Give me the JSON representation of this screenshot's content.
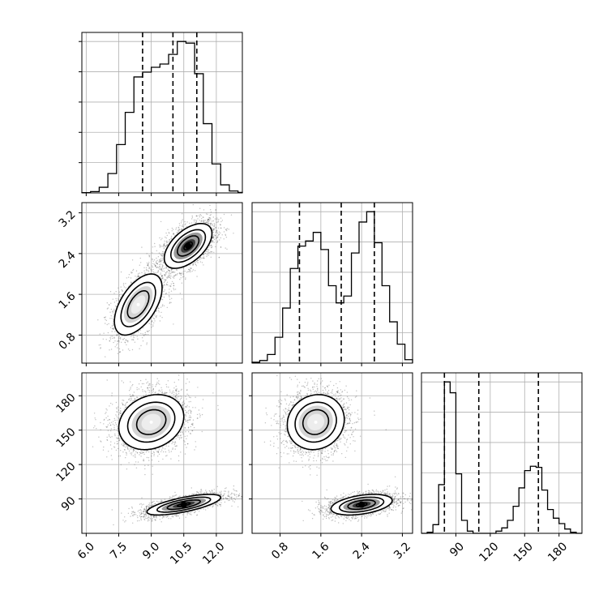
{
  "figure": {
    "type": "corner-plot",
    "title": ""
  },
  "colors": {
    "ink": "#000000",
    "grid": "#b0b0b0",
    "scatter": "#4a4a4a"
  },
  "chart_data": {
    "type": "corner",
    "parameters": [
      {
        "name": "",
        "range": [
          5.8,
          13.2
        ],
        "ticks": [
          6.0,
          7.5,
          9.0,
          10.5,
          12.0
        ],
        "tick_labels": [
          "6.0",
          "7.5",
          "9.0",
          "10.5",
          "12.0"
        ]
      },
      {
        "name": "",
        "range": [
          0.25,
          3.4
        ],
        "ticks": [
          0.8,
          1.6,
          2.4,
          3.2
        ],
        "tick_labels": [
          "0.8",
          "1.6",
          "2.4",
          "3.2"
        ]
      },
      {
        "name": "",
        "range": [
          60,
          200
        ],
        "ticks": [
          90,
          120,
          150,
          180
        ],
        "tick_labels": [
          "90",
          "120",
          "150",
          "180"
        ]
      }
    ],
    "grid": true,
    "histograms": [
      {
        "parameter": 0,
        "edges": [
          5.8,
          6.2,
          6.6,
          7.0,
          7.4,
          7.8,
          8.2,
          8.6,
          9.0,
          9.4,
          9.8,
          10.2,
          10.6,
          11.0,
          11.4,
          11.8,
          12.2,
          12.6,
          13.0,
          13.2
        ],
        "counts": [
          0.2,
          0.8,
          3.5,
          12,
          30,
          50,
          72,
          75,
          78,
          80,
          86,
          94,
          93,
          74,
          43,
          18,
          5,
          1.2,
          0.3
        ],
        "quantiles": [
          8.6,
          10.0,
          11.1
        ]
      },
      {
        "parameter": 1,
        "edges": [
          0.25,
          0.4,
          0.55,
          0.7,
          0.85,
          1.0,
          1.15,
          1.3,
          1.45,
          1.6,
          1.75,
          1.9,
          2.05,
          2.2,
          2.35,
          2.5,
          2.65,
          2.8,
          2.95,
          3.1,
          3.25,
          3.4
        ],
        "counts": [
          0.5,
          1.5,
          5,
          15,
          32,
          55,
          68,
          71,
          76,
          66,
          45,
          35,
          39,
          64,
          82,
          88,
          70,
          45,
          24,
          11,
          2
        ],
        "quantiles": [
          1.18,
          2.0,
          2.65
        ]
      },
      {
        "parameter": 2,
        "edges": [
          60,
          65,
          70,
          75,
          80,
          85,
          90,
          95,
          100,
          105,
          110,
          115,
          120,
          125,
          130,
          135,
          140,
          145,
          150,
          155,
          160,
          165,
          170,
          175,
          180,
          185,
          190,
          195,
          200
        ],
        "counts": [
          0,
          1,
          8,
          45,
          140,
          130,
          55,
          12,
          2,
          0,
          0,
          0,
          0,
          2,
          5,
          12,
          25,
          42,
          58,
          62,
          61,
          40,
          22,
          14,
          9,
          4,
          1,
          0
        ],
        "quantiles": [
          80,
          110,
          162
        ]
      }
    ],
    "pairs": [
      {
        "x_param": 0,
        "y_param": 1,
        "peaks": [
          {
            "x": 10.7,
            "y": 2.55,
            "density": "high"
          },
          {
            "x": 8.4,
            "y": 1.4,
            "density": "medium"
          }
        ]
      },
      {
        "x_param": 0,
        "y_param": 2,
        "peaks": [
          {
            "x": 9.0,
            "y": 157,
            "density": "medium"
          },
          {
            "x": 10.5,
            "y": 85,
            "density": "high"
          }
        ]
      },
      {
        "x_param": 1,
        "y_param": 2,
        "peaks": [
          {
            "x": 1.5,
            "y": 157,
            "density": "medium"
          },
          {
            "x": 2.4,
            "y": 85,
            "density": "high"
          }
        ]
      }
    ]
  }
}
